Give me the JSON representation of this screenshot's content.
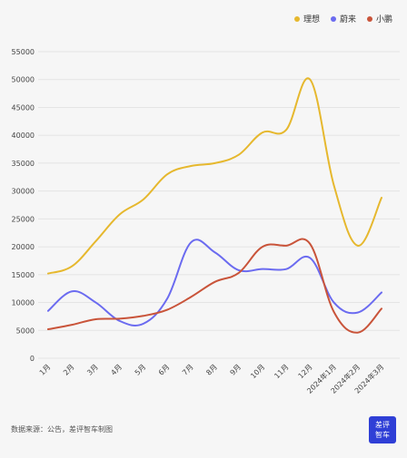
{
  "chart_data": {
    "type": "line",
    "categories": [
      "1月",
      "2月",
      "3月",
      "4月",
      "5月",
      "6月",
      "7月",
      "8月",
      "9月",
      "10月",
      "11月",
      "12月",
      "2024年1月",
      "2024年2月",
      "2024年3月"
    ],
    "yticks": [
      "0",
      "5000",
      "10000",
      "15000",
      "20000",
      "25000",
      "30000",
      "35000",
      "40000",
      "45000",
      "50000",
      "55000"
    ],
    "ylim": [
      0,
      55000
    ],
    "grid": true,
    "legend_position": "top-right",
    "series": [
      {
        "name": "理想",
        "color": "#e6b82e",
        "values": [
          15200,
          16500,
          21000,
          25800,
          28500,
          33000,
          34500,
          35000,
          36500,
          40500,
          41000,
          50000,
          31000,
          20200,
          28800
        ]
      },
      {
        "name": "蔚来",
        "color": "#6b6bf0",
        "values": [
          8500,
          12000,
          10000,
          6700,
          6200,
          10700,
          20800,
          19000,
          15800,
          16000,
          16000,
          18000,
          10000,
          8200,
          11800
        ]
      },
      {
        "name": "小鹏",
        "color": "#c9543a",
        "values": [
          5200,
          6000,
          7000,
          7100,
          7600,
          8700,
          11000,
          13700,
          15300,
          20000,
          20200,
          20500,
          8300,
          4600,
          8900
        ]
      }
    ]
  },
  "footer": {
    "source": "数据来源：公告，差评智车制图",
    "badge_line1": "差评",
    "badge_line2": "智车"
  }
}
